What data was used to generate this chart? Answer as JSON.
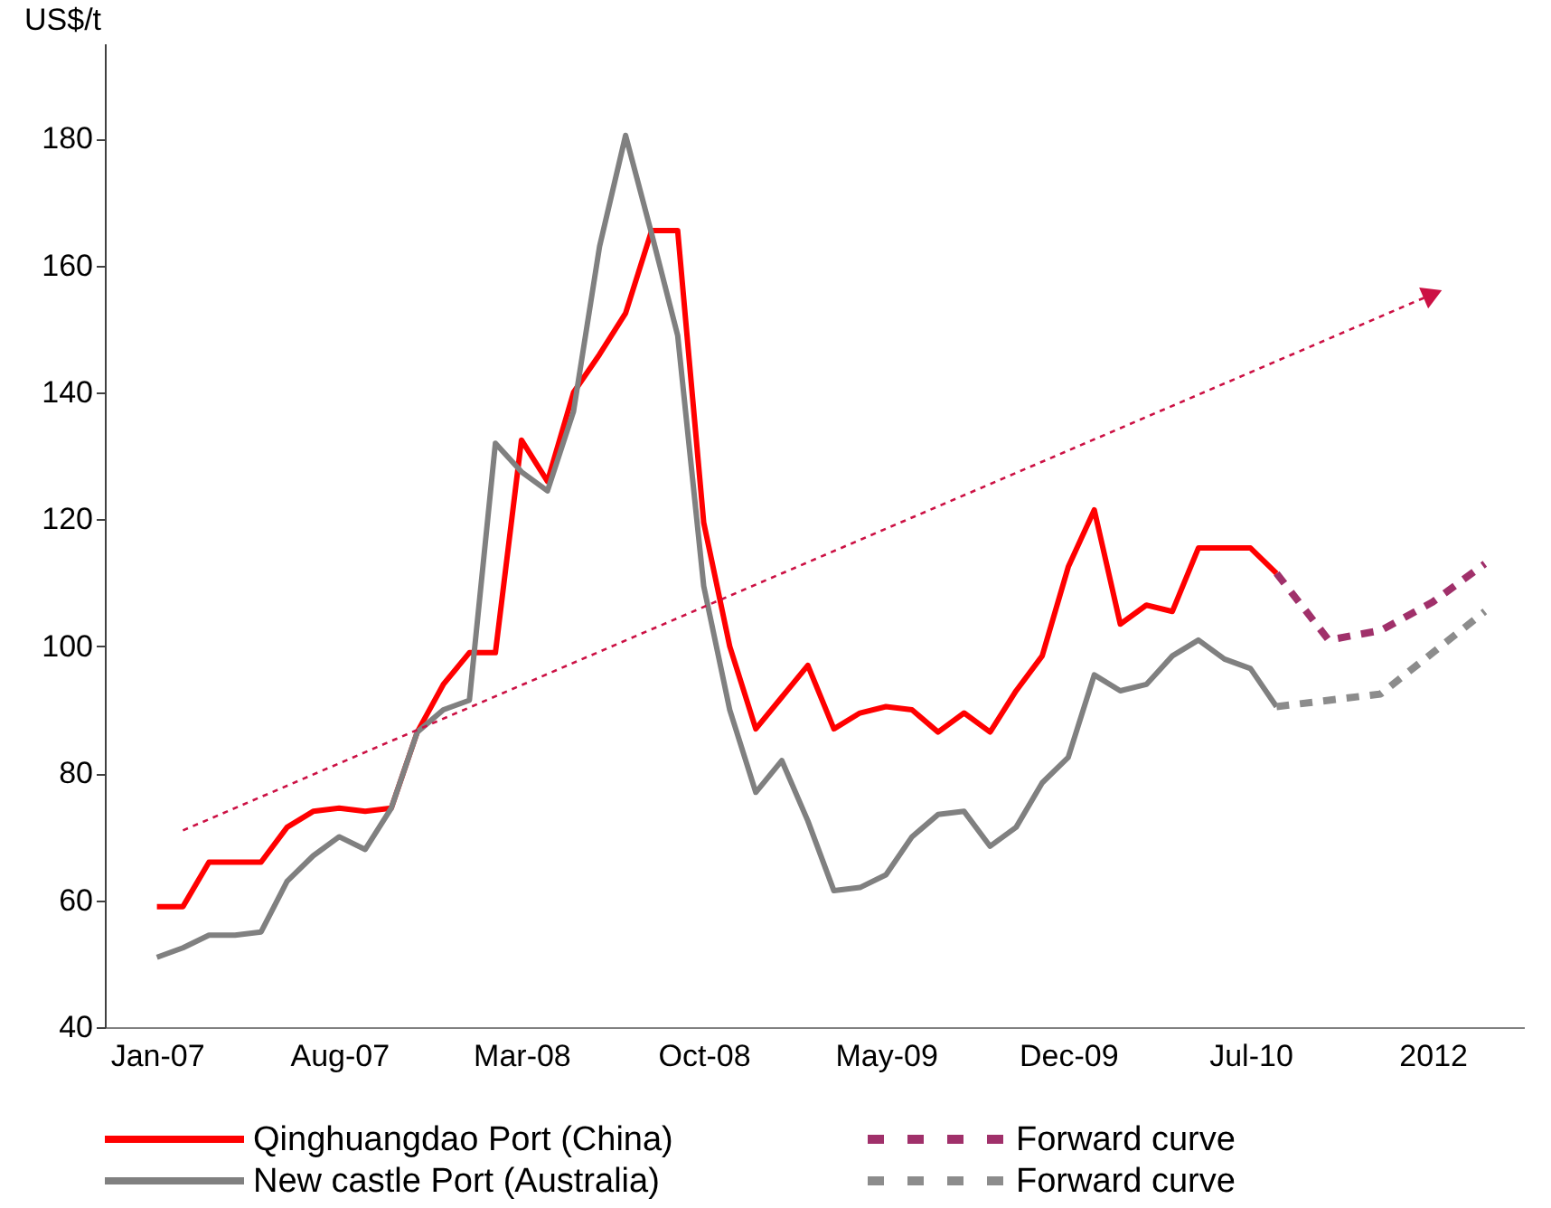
{
  "chart_data": {
    "type": "line",
    "ylabel": "US$/t",
    "categories": [
      "Jan-07",
      null,
      null,
      null,
      null,
      null,
      null,
      "Aug-07",
      null,
      null,
      null,
      null,
      null,
      null,
      "Mar-08",
      null,
      null,
      null,
      null,
      null,
      null,
      "Oct-08",
      null,
      null,
      null,
      null,
      null,
      null,
      "May-09",
      null,
      null,
      null,
      null,
      null,
      null,
      "Dec-09",
      null,
      null,
      null,
      null,
      null,
      null,
      "Jul-10",
      null,
      null,
      null,
      null,
      null,
      null,
      "2012",
      null,
      null,
      null
    ],
    "series": [
      {
        "name": "Qinghuangdao Port (China)",
        "color": "#ff0000",
        "line_style": "solid",
        "values": [
          59,
          59,
          66,
          66,
          66,
          71.5,
          74,
          74.5,
          74,
          74.5,
          86.5,
          94,
          99,
          99,
          132.5,
          126,
          140,
          146,
          152.5,
          165.5,
          165.5,
          119.5,
          100,
          87,
          92,
          97,
          87,
          89.5,
          90.5,
          90,
          86.5,
          89.5,
          86.5,
          93,
          98.5,
          112.5,
          121.5,
          103.5,
          106.5,
          105.5,
          115.5,
          115.5,
          115.5,
          111.5,
          null,
          null,
          null,
          null,
          null,
          null,
          null,
          null,
          null
        ]
      },
      {
        "name": "New castle Port (Australia)",
        "color": "#808080",
        "line_style": "solid",
        "values": [
          51,
          52.5,
          54.5,
          54.5,
          55,
          63,
          67,
          70,
          68,
          74.5,
          86.5,
          90,
          91.5,
          132,
          127.5,
          124.5,
          137,
          163,
          180.5,
          165,
          149,
          109.5,
          90,
          77,
          82,
          72.5,
          61.5,
          62,
          64,
          70,
          73.5,
          74,
          68.5,
          71.5,
          78.5,
          82.5,
          95.5,
          93,
          94,
          98.5,
          101,
          98,
          96.5,
          90.5,
          null,
          null,
          null,
          null,
          null,
          null,
          null,
          null,
          null
        ]
      },
      {
        "name": "Forward curve",
        "color": "#a0306a",
        "line_style": "dashed",
        "values": [
          null,
          null,
          null,
          null,
          null,
          null,
          null,
          null,
          null,
          null,
          null,
          null,
          null,
          null,
          null,
          null,
          null,
          null,
          null,
          null,
          null,
          null,
          null,
          null,
          null,
          null,
          null,
          null,
          null,
          null,
          null,
          null,
          null,
          null,
          null,
          null,
          null,
          null,
          null,
          null,
          null,
          null,
          null,
          111.5,
          null,
          101,
          null,
          102.5,
          null,
          107,
          null,
          113,
          null
        ]
      },
      {
        "name": "Forward curve",
        "color": "#8c8c8c",
        "line_style": "dashed",
        "values": [
          null,
          null,
          null,
          null,
          null,
          null,
          null,
          null,
          null,
          null,
          null,
          null,
          null,
          null,
          null,
          null,
          null,
          null,
          null,
          null,
          null,
          null,
          null,
          null,
          null,
          null,
          null,
          null,
          null,
          null,
          null,
          null,
          null,
          null,
          null,
          null,
          null,
          null,
          null,
          null,
          null,
          null,
          null,
          90.5,
          null,
          91.5,
          null,
          92.5,
          null,
          99,
          null,
          105.5,
          null
        ]
      },
      {
        "color": "#cc1144",
        "line_style": "dotted",
        "values": [
          null,
          71,
          null,
          null,
          null,
          null,
          null,
          null,
          null,
          null,
          null,
          null,
          null,
          null,
          null,
          null,
          null,
          null,
          null,
          null,
          null,
          null,
          null,
          null,
          null,
          null,
          null,
          null,
          null,
          null,
          null,
          null,
          null,
          null,
          null,
          null,
          null,
          null,
          null,
          null,
          null,
          null,
          null,
          null,
          null,
          null,
          null,
          null,
          null,
          155.5,
          null,
          null,
          null
        ]
      }
    ],
    "ylim": [
      40,
      195
    ],
    "yticks": [
      40,
      60,
      80,
      100,
      120,
      140,
      160,
      180
    ],
    "grid": false,
    "legend": "bottom"
  }
}
